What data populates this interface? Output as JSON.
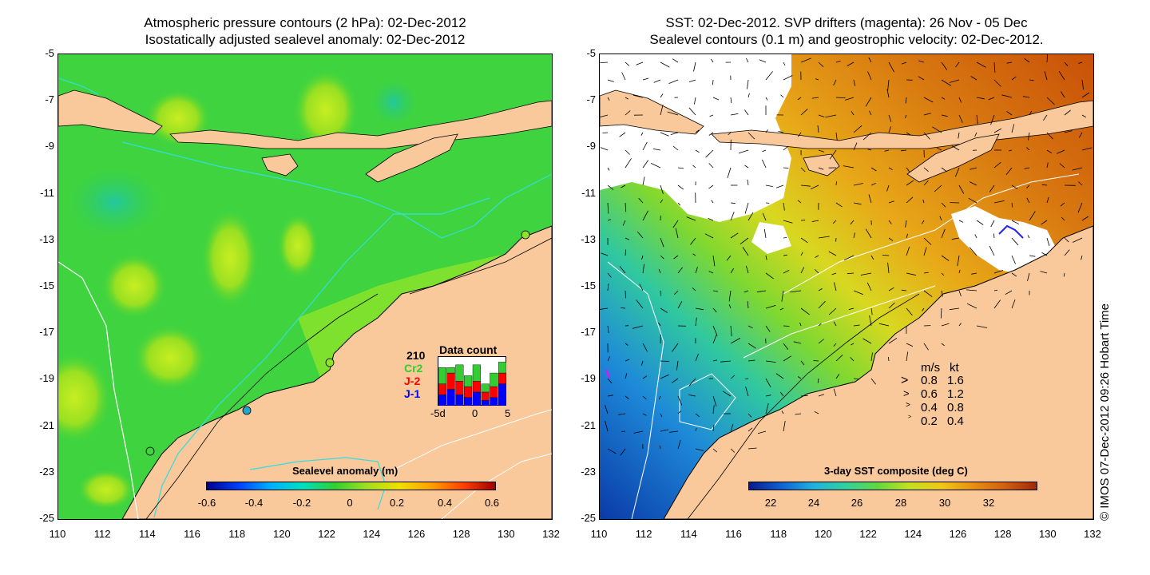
{
  "left_panel": {
    "title_line1": "Atmospheric pressure contours (2 hPa): 02-Dec-2012",
    "title_line2": "Isostatically adjusted sealevel anomaly: 02-Dec-2012",
    "colorbar": {
      "title": "Sealevel anomaly (m)",
      "ticks": [
        "-0.6",
        "-0.4",
        "-0.2",
        "0",
        "0.2",
        "0.4",
        "0.6"
      ]
    },
    "data_count": {
      "title": "Data count",
      "total": "210",
      "missions": [
        {
          "label": "Cr2",
          "color": "#33cc33"
        },
        {
          "label": "J-2",
          "color": "#ff0000"
        },
        {
          "label": "J-1",
          "color": "#0000ff"
        }
      ],
      "axis_ticks": [
        "-5d",
        "0",
        "5"
      ],
      "bars": [
        {
          "j1": 4,
          "j2": 4,
          "cr2": 6
        },
        {
          "j1": 6,
          "j2": 6,
          "cr2": 2
        },
        {
          "j1": 4,
          "j2": 5,
          "cr2": 6
        },
        {
          "j1": 3,
          "j2": 4,
          "cr2": 4
        },
        {
          "j1": 5,
          "j2": 4,
          "cr2": 6
        },
        {
          "j1": 2,
          "j2": 3,
          "cr2": 3
        },
        {
          "j1": 3,
          "j2": 4,
          "cr2": 5
        },
        {
          "j1": 8,
          "j2": 4,
          "cr2": 4
        }
      ],
      "max_count": 17
    }
  },
  "right_panel": {
    "title_line1": "SST: 02-Dec-2012. SVP drifters (magenta): 26 Nov - 05 Dec",
    "title_line2": "Sealevel contours (0.1 m) and geostrophic velocity: 02-Dec-2012.",
    "colorbar": {
      "title": "3-day SST composite (deg C)",
      "ticks": [
        "22",
        "24",
        "26",
        "28",
        "30",
        "32"
      ]
    },
    "speed_legend": {
      "header_ms": "m/s",
      "header_kt": "kt",
      "rows": [
        {
          "ms": "0.8",
          "kt": "1.6"
        },
        {
          "ms": "0.6",
          "kt": "1.2"
        },
        {
          "ms": "0.4",
          "kt": "0.8"
        },
        {
          "ms": "0.2",
          "kt": "0.4"
        }
      ]
    }
  },
  "axes": {
    "lat_ticks": [
      "-5",
      "-7",
      "-9",
      "-11",
      "-13",
      "-15",
      "-17",
      "-19",
      "-21",
      "-23",
      "-25"
    ],
    "lon_ticks": [
      "110",
      "112",
      "114",
      "116",
      "118",
      "120",
      "122",
      "124",
      "126",
      "128",
      "130",
      "132"
    ],
    "lat_range": [
      -25,
      -5
    ],
    "lon_range": [
      110,
      132
    ]
  },
  "credit": "© IMOS 07-Dec-2012 09:26 Hobart Time",
  "colors": {
    "land": "#f9c89b",
    "sla_base": "#3cd23c",
    "sst_warm": "#e08a1e",
    "sst_cool": "#1e7ad2",
    "contour_cyan": "#33dddd"
  }
}
